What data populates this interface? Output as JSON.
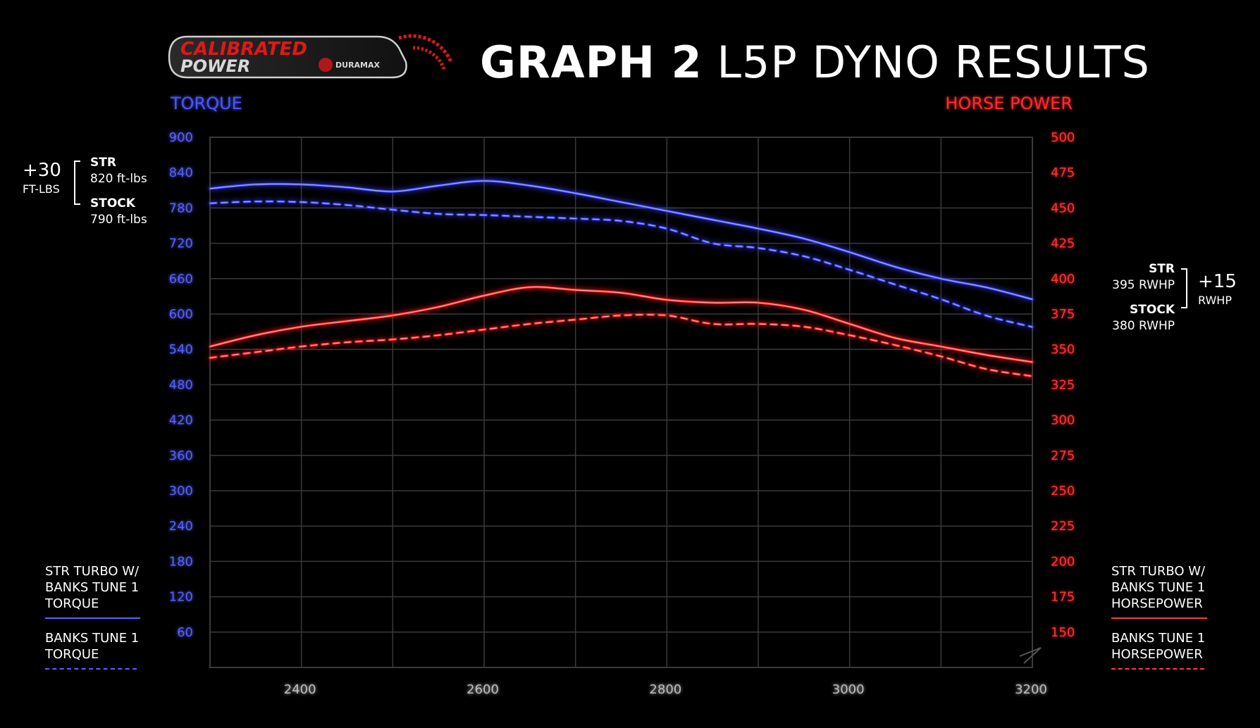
{
  "header": {
    "logo_line1": "CALIBRATED",
    "logo_line2": "POWER",
    "logo_badge": "DURAMAX",
    "title_bold": "GRAPH 2",
    "title_light": "L5P DYNO RESULTS"
  },
  "colors": {
    "torque": "#3b44ff",
    "horsepower": "#ff2020",
    "highlight": "#e6e619",
    "reference": "#d0d0d0",
    "grid": "#3a3a3a",
    "background": "#000000"
  },
  "annotations": {
    "left": {
      "delta": "+30",
      "delta_unit": "FT-LBS",
      "str_label": "STR",
      "str_value": "820 ft-lbs",
      "stock_label": "STOCK",
      "stock_value": "790 ft-lbs"
    },
    "right": {
      "delta": "+15",
      "delta_unit": "RWHP",
      "str_label": "STR",
      "str_value": "395 RWHP",
      "stock_label": "STOCK",
      "stock_value": "380 RWHP"
    }
  },
  "legend": {
    "left": [
      {
        "text": [
          "STR TURBO W/",
          "BANKS TUNE 1",
          "TORQUE"
        ],
        "style": "solid"
      },
      {
        "text": [
          "BANKS TUNE 1",
          "TORQUE"
        ],
        "style": "dashed"
      }
    ],
    "right": [
      {
        "text": [
          "STR TURBO W/",
          "BANKS TUNE 1",
          "HORSEPOWER"
        ],
        "style": "solid"
      },
      {
        "text": [
          "BANKS TUNE 1",
          "HORSEPOWER"
        ],
        "style": "dashed"
      }
    ]
  },
  "chart_data": {
    "type": "line",
    "title": "GRAPH 2 L5P DYNO RESULTS",
    "xlabel": "",
    "ylabel_left": "TORQUE",
    "ylabel_right": "HORSE POWER",
    "x_ticks": [
      2400,
      2600,
      2800,
      3000,
      3200
    ],
    "xlim": [
      2300,
      3200
    ],
    "y_left_ticks": [
      60,
      120,
      180,
      240,
      300,
      360,
      420,
      480,
      540,
      600,
      660,
      720,
      780,
      840,
      900
    ],
    "y_left_lim": [
      0,
      900
    ],
    "y_right_ticks": [
      150,
      175,
      200,
      225,
      250,
      275,
      300,
      325,
      350,
      375,
      400,
      425,
      450,
      475,
      500
    ],
    "y_right_lim": [
      125,
      500
    ],
    "grid": true,
    "series": [
      {
        "name": "STR TURBO W/ BANKS TUNE 1 TORQUE",
        "axis": "left",
        "style": "solid",
        "color": "#3b44ff",
        "x": [
          2300,
          2350,
          2400,
          2450,
          2500,
          2550,
          2600,
          2650,
          2700,
          2750,
          2800,
          2850,
          2900,
          2950,
          3000,
          3050,
          3100,
          3150,
          3200
        ],
        "y": [
          813,
          820,
          820,
          815,
          808,
          818,
          826,
          818,
          805,
          790,
          775,
          760,
          745,
          728,
          705,
          680,
          660,
          645,
          625
        ]
      },
      {
        "name": "BANKS TUNE 1 TORQUE",
        "axis": "left",
        "style": "dashed",
        "color": "#3b44ff",
        "x": [
          2300,
          2350,
          2400,
          2450,
          2500,
          2550,
          2600,
          2650,
          2700,
          2750,
          2800,
          2850,
          2900,
          2950,
          3000,
          3050,
          3100,
          3150,
          3200
        ],
        "y": [
          788,
          791,
          790,
          785,
          777,
          770,
          768,
          765,
          762,
          758,
          745,
          720,
          712,
          698,
          675,
          650,
          625,
          597,
          578
        ]
      },
      {
        "name": "STR TURBO W/ BANKS TUNE 1 HORSEPOWER",
        "axis": "right",
        "style": "solid",
        "color": "#ff2020",
        "x": [
          2300,
          2350,
          2400,
          2450,
          2500,
          2550,
          2600,
          2650,
          2700,
          2750,
          2800,
          2850,
          2900,
          2950,
          3000,
          3050,
          3100,
          3150,
          3200
        ],
        "y": [
          352,
          360,
          366,
          370,
          374,
          380,
          388,
          394,
          392,
          390,
          385,
          383,
          383,
          378,
          368,
          358,
          352,
          346,
          341
        ]
      },
      {
        "name": "BANKS TUNE 1 HORSEPOWER",
        "axis": "right",
        "style": "dashed",
        "color": "#ff2020",
        "x": [
          2300,
          2350,
          2400,
          2450,
          2500,
          2550,
          2600,
          2650,
          2700,
          2750,
          2800,
          2850,
          2900,
          2950,
          3000,
          3050,
          3100,
          3150,
          3200
        ],
        "y": [
          344,
          348,
          352,
          355,
          357,
          360,
          364,
          368,
          371,
          374,
          374,
          368,
          368,
          366,
          360,
          353,
          345,
          336,
          331
        ]
      }
    ],
    "reference_lines": [
      {
        "label": "STR 820 ft-lbs",
        "axis": "left",
        "y": 825,
        "color": "#e6e619",
        "x_to": 2600
      },
      {
        "label": "STOCK 790 ft-lbs",
        "axis": "left",
        "y": 788,
        "color": "#d0d0d0",
        "x_to": 2365
      },
      {
        "label": "STR 395 RWHP",
        "axis": "right",
        "y": 395,
        "color": "#e6e619",
        "x_from": 2650
      },
      {
        "label": "STOCK 380 RWHP",
        "axis": "right",
        "y": 378,
        "color": "#d0d0d0",
        "x_from": 2760
      }
    ]
  }
}
